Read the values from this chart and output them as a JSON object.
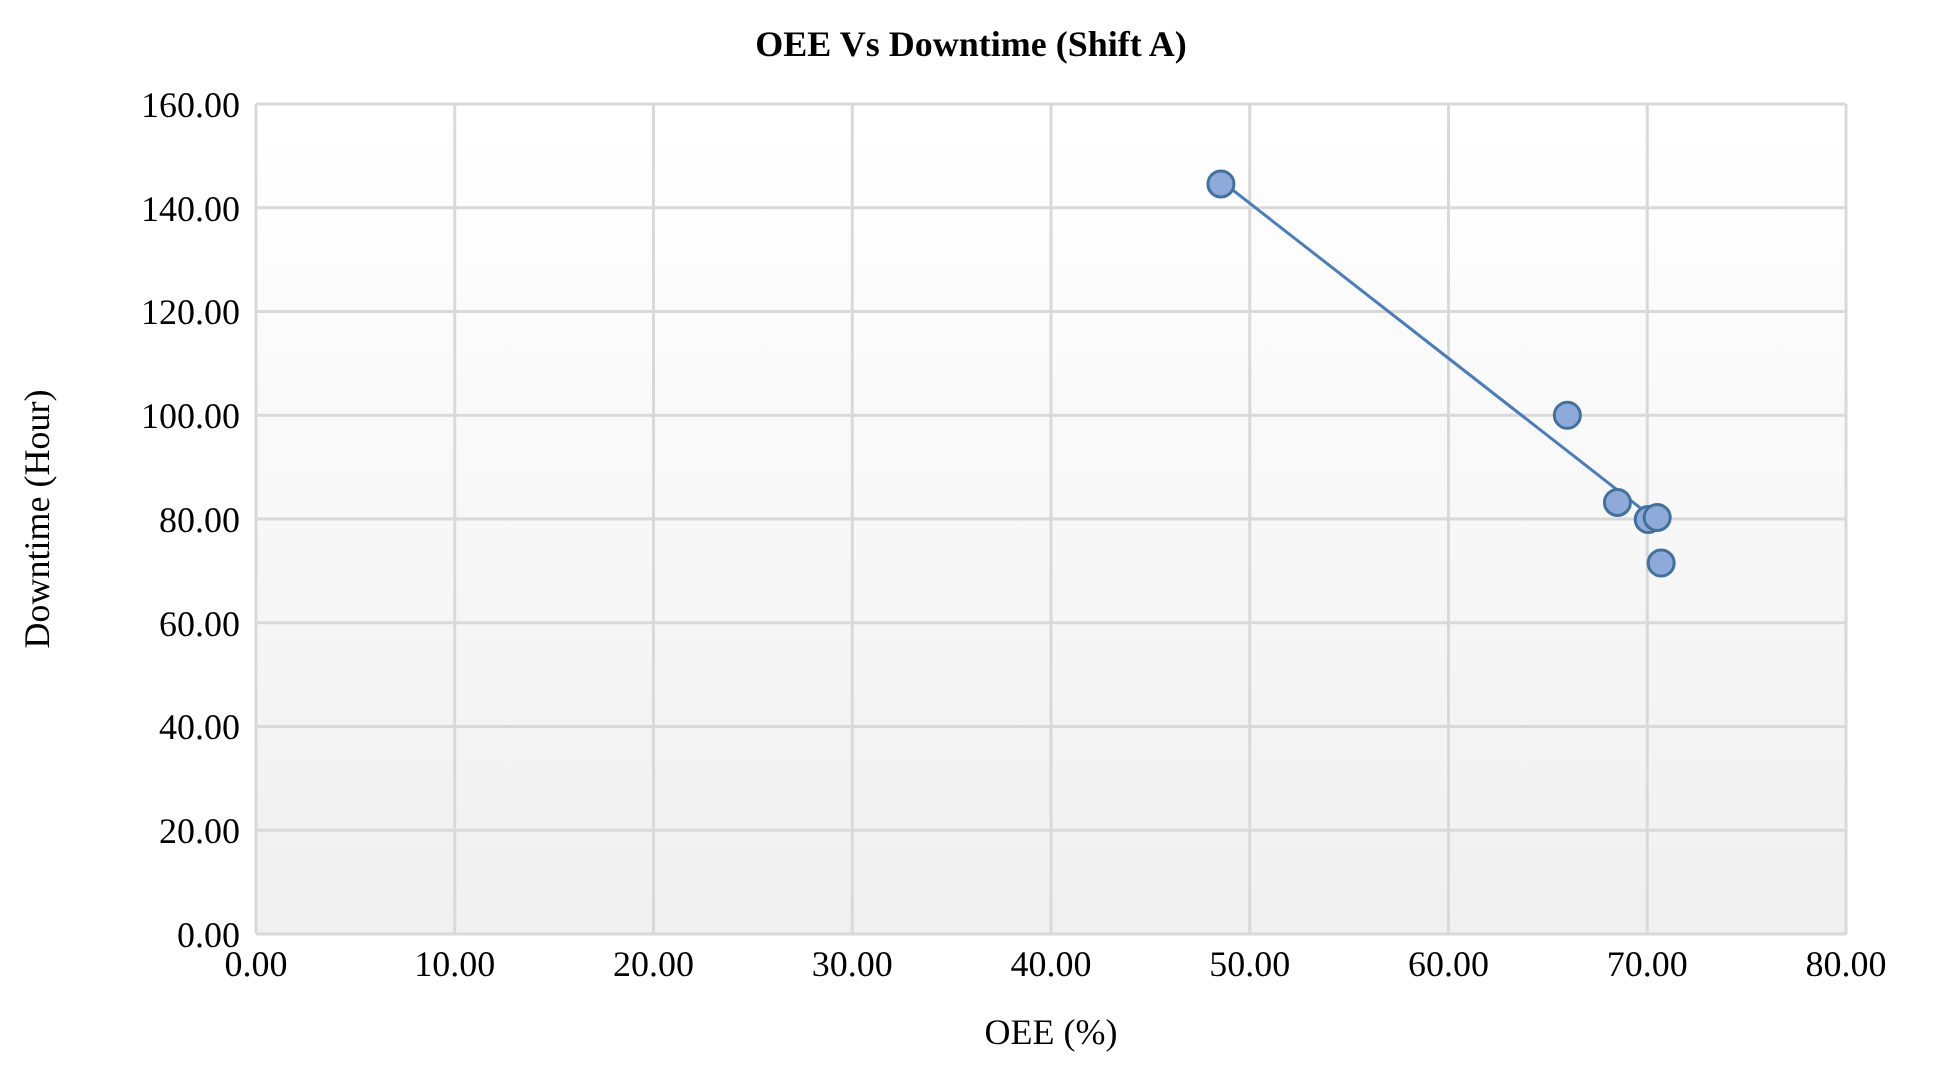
{
  "chart_data": {
    "type": "scatter",
    "title": "OEE Vs Downtime (Shift A)",
    "xlabel": "OEE (%)",
    "ylabel": "Downtime (Hour)",
    "series": [
      {
        "marker": "circle",
        "color": "#8eaadb",
        "x": [
          48.55,
          65.98,
          68.5,
          70.05,
          70.5,
          70.7
        ],
        "values": [
          144.6,
          100.0,
          83.2,
          79.9,
          80.3,
          71.5
        ]
      },
      {
        "type": "line",
        "marker": "none",
        "color": "#4a7ebb",
        "x": [
          48.55,
          70.7
        ],
        "values": [
          145.2,
          79.0
        ]
      }
    ],
    "grid": true,
    "legend": false,
    "xlim": [
      0,
      80
    ],
    "xticks": [
      {
        "value": 0,
        "label": "0.00"
      },
      {
        "value": 10,
        "label": "10.00"
      },
      {
        "value": 20,
        "label": "20.00"
      },
      {
        "value": 30,
        "label": "30.00"
      },
      {
        "value": 40,
        "label": "40.00"
      },
      {
        "value": 50,
        "label": "50.00"
      },
      {
        "value": 60,
        "label": "60.00"
      },
      {
        "value": 70,
        "label": "70.00"
      },
      {
        "value": 80,
        "label": "80.00"
      }
    ],
    "ylim": [
      0,
      160
    ],
    "yticks": [
      {
        "value": 0,
        "label": "0.00"
      },
      {
        "value": 20,
        "label": "20.00"
      },
      {
        "value": 40,
        "label": "40.00"
      },
      {
        "value": 60,
        "label": "60.00"
      },
      {
        "value": 80,
        "label": "80.00"
      },
      {
        "value": 100,
        "label": "100.00"
      },
      {
        "value": 120,
        "label": "120.00"
      },
      {
        "value": 140,
        "label": "140.00"
      },
      {
        "value": 160,
        "label": "160.00"
      }
    ]
  }
}
